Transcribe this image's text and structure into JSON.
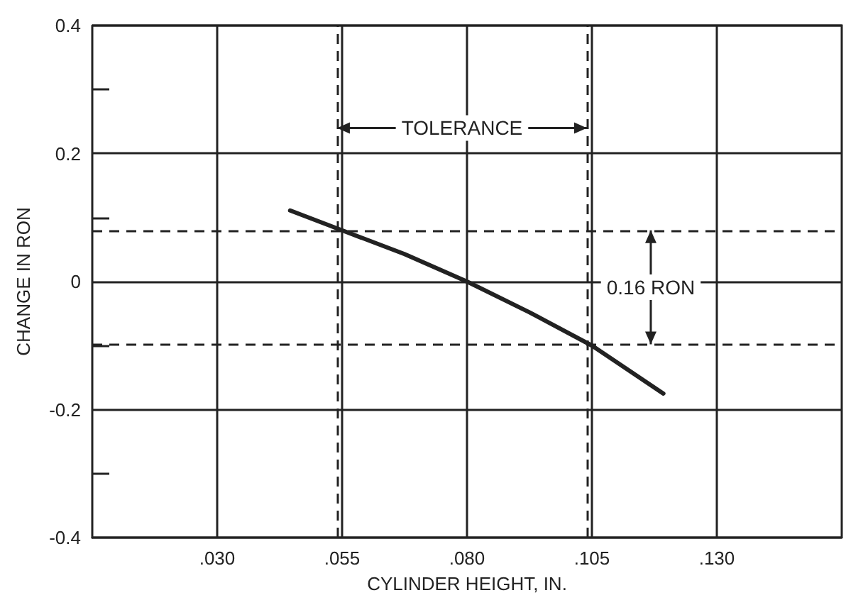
{
  "chart_data": {
    "type": "line",
    "xlabel": "CYLINDER HEIGHT, IN.",
    "ylabel": "CHANGE IN RON",
    "x": [
      0.0446,
      0.055,
      0.0675,
      0.08,
      0.0925,
      0.105,
      0.1193
    ],
    "series": [
      {
        "color": "#222222",
        "values": [
          0.111,
          0.08,
          0.043,
          0.0,
          -0.048,
          -0.1,
          -0.175
        ]
      }
    ],
    "xlim": [
      0.005,
      0.155
    ],
    "xticks": [
      {
        "value": 0.03,
        "label": ".030"
      },
      {
        "value": 0.055,
        "label": ".055"
      },
      {
        "value": 0.08,
        "label": ".080"
      },
      {
        "value": 0.105,
        "label": ".105"
      },
      {
        "value": 0.13,
        "label": ".130"
      }
    ],
    "ylim": [
      -0.4,
      0.4
    ],
    "yticks": [
      -0.4,
      {
        "value": -0.3,
        "label": null
      },
      -0.2,
      {
        "value": -0.1,
        "label": null
      },
      0,
      {
        "value": 0.1,
        "label": null
      },
      0.2,
      {
        "value": 0.3,
        "label": null
      },
      0.4
    ],
    "grid": true,
    "marker": "none",
    "line_style": "solid",
    "ref_lines": [
      {
        "axis": "x",
        "value": 0.054,
        "line_style": "dashed"
      },
      {
        "axis": "x",
        "value": 0.104,
        "line_style": "dashed"
      },
      {
        "axis": "y",
        "value": 0.08,
        "line_style": "dashed"
      },
      {
        "axis": "y",
        "value": -0.098,
        "line_style": "dashed"
      }
    ],
    "annotations": [
      "TOLERANCE",
      "0.16 RON"
    ]
  }
}
